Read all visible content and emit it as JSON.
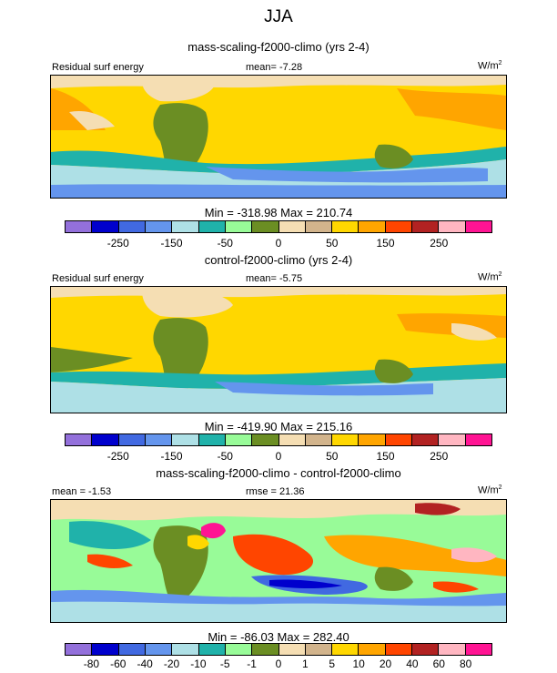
{
  "figure": {
    "title": "JJA"
  },
  "palettes": {
    "full": [
      "#9370db",
      "#0000cd",
      "#4169e1",
      "#6495ed",
      "#aee0e6",
      "#20b2aa",
      "#98fb98",
      "#6b8e23",
      "#f5deb3",
      "#d2b48c",
      "#ffd700",
      "#ffa500",
      "#ff4500",
      "#b22222",
      "#ffb6c1",
      "#ff1493"
    ]
  },
  "panels": [
    {
      "title": "mass-scaling-f2000-climo (yrs 2-4)",
      "left_label": "Residual surf energy",
      "center_label": "mean=  -7.28",
      "units": "W/m",
      "units_sup": "2",
      "stats": "Min = -318.98 Max = 210.74",
      "colorbar_labels": [
        "-250",
        "-150",
        "-50",
        "0",
        "50",
        "150",
        "250"
      ]
    },
    {
      "title": "control-f2000-climo (yrs 2-4)",
      "left_label": "Residual surf energy",
      "center_label": "mean=  -5.75",
      "units": "W/m",
      "units_sup": "2",
      "stats": "Min = -419.90 Max = 215.16",
      "colorbar_labels": [
        "-250",
        "-150",
        "-50",
        "0",
        "50",
        "150",
        "250"
      ]
    },
    {
      "title": "mass-scaling-f2000-climo - control-f2000-climo",
      "left_label": "mean =  -1.53",
      "center_label": "rmse =  21.36",
      "units": "W/m",
      "units_sup": "2",
      "stats": "Min = -86.03 Max = 282.40",
      "colorbar_labels": [
        "-80",
        "-60",
        "-40",
        "-20",
        "-10",
        "-5",
        "-1",
        "0",
        "1",
        "5",
        "10",
        "20",
        "40",
        "60",
        "80"
      ]
    }
  ]
}
